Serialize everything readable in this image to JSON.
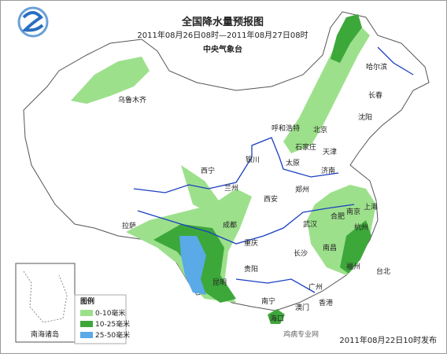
{
  "header": {
    "title": "全国降水量预报图",
    "period": "2011年08月26日08时—2011年08月27日08时",
    "issuer": "中央气象台"
  },
  "cities": [
    "乌鲁木齐",
    "哈尔滨",
    "长春",
    "沈阳",
    "呼和浩特",
    "北京",
    "石家庄",
    "天津",
    "银川",
    "太原",
    "济南",
    "西宁",
    "兰州",
    "郑州",
    "西安",
    "合肥",
    "南京",
    "上海",
    "拉萨",
    "成都",
    "武汉",
    "杭州",
    "重庆",
    "长沙",
    "南昌",
    "贵阳",
    "福州",
    "台北",
    "昆明",
    "南宁",
    "广州",
    "香港",
    "澳门",
    "海口"
  ],
  "inset_label": "南海诸岛",
  "legend": {
    "title": "图例",
    "items": [
      "0-10毫米",
      "10-25毫米",
      "25-50毫米"
    ]
  },
  "footer": "2011年08月22日10时发布",
  "watermark": "鸡病专业网"
}
